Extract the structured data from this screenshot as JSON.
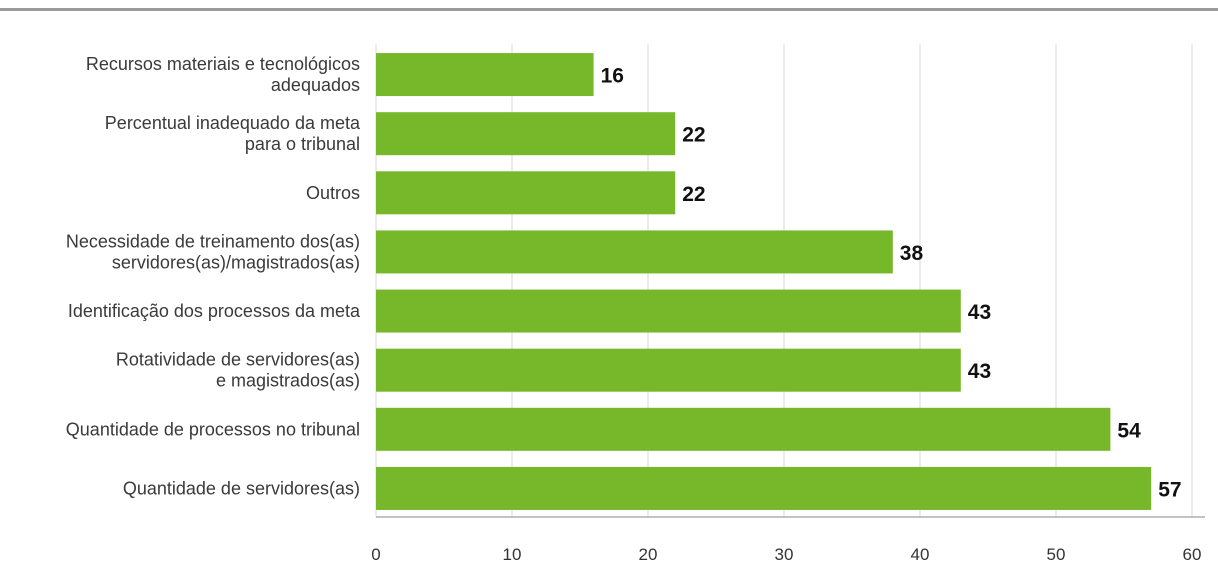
{
  "chart_data": {
    "type": "bar",
    "orientation": "horizontal",
    "categories": [
      [
        "Recursos materiais e tecnológicos",
        "adequados"
      ],
      [
        "Percentual inadequado da meta",
        "para o tribunal"
      ],
      [
        "Outros"
      ],
      [
        "Necessidade de treinamento dos(as)",
        "servidores(as)/magistrados(as)"
      ],
      [
        "Identificação dos processos da meta"
      ],
      [
        "Rotatividade de servidores(as)",
        "e magistrados(as)"
      ],
      [
        "Quantidade de processos no tribunal"
      ],
      [
        "Quantidade de servidores(as)"
      ]
    ],
    "values": [
      16,
      22,
      22,
      38,
      43,
      43,
      54,
      57
    ],
    "value_labels": [
      "16",
      "22",
      "22",
      "38",
      "43",
      "43",
      "54",
      "57"
    ],
    "xlim": [
      0,
      60
    ],
    "xticks": [
      0,
      10,
      20,
      30,
      40,
      50,
      60
    ],
    "xtick_labels": [
      "0",
      "10",
      "20",
      "30",
      "40",
      "50",
      "60"
    ],
    "grid": "vertical",
    "title": "",
    "xlabel": "",
    "ylabel": "",
    "bar_color": "#76b82a",
    "grid_color": "#d9d9d9",
    "top_rule_color": "#9a9a9a"
  }
}
